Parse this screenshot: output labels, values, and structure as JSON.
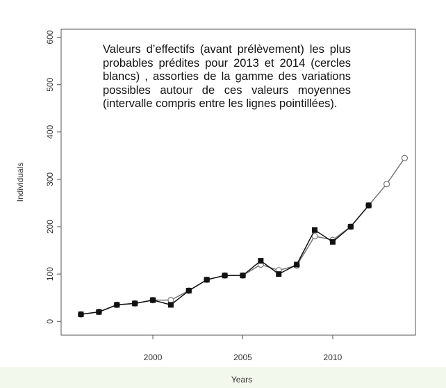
{
  "chart_data": {
    "type": "line",
    "annotation": "Valeurs d’effectifs (avant prélèvement) les plus probables prédites pour 2013 et 2014 (cercles blancs) , assorties de la gamme des variations possibles autour de ces valeurs moyennes (intervalle compris entre les lignes pointillées).",
    "xlabel": "Years",
    "ylabel": "Individuals",
    "x": [
      1996,
      1997,
      1998,
      1999,
      2000,
      2001,
      2002,
      2003,
      2004,
      2005,
      2006,
      2007,
      2008,
      2009,
      2010,
      2011,
      2012,
      2013,
      2014
    ],
    "series": [
      {
        "color": "#777777",
        "marker": "circle",
        "values": [
          15,
          20,
          35,
          38,
          45,
          45,
          65,
          88,
          97,
          97,
          120,
          108,
          118,
          180,
          172,
          200,
          245,
          290,
          345
        ]
      },
      {
        "color": "#111111",
        "marker": "square",
        "values": [
          15,
          20,
          35,
          38,
          45,
          35,
          65,
          88,
          97,
          97,
          128,
          100,
          120,
          193,
          168,
          200,
          245,
          null,
          null
        ]
      }
    ],
    "xlim": [
      1994.9,
      2014.6
    ],
    "xticks": [
      2000,
      2005,
      2010
    ],
    "ylim": [
      -29,
      617
    ],
    "yticks": [
      0,
      100,
      200,
      300,
      400,
      500,
      600
    ]
  }
}
